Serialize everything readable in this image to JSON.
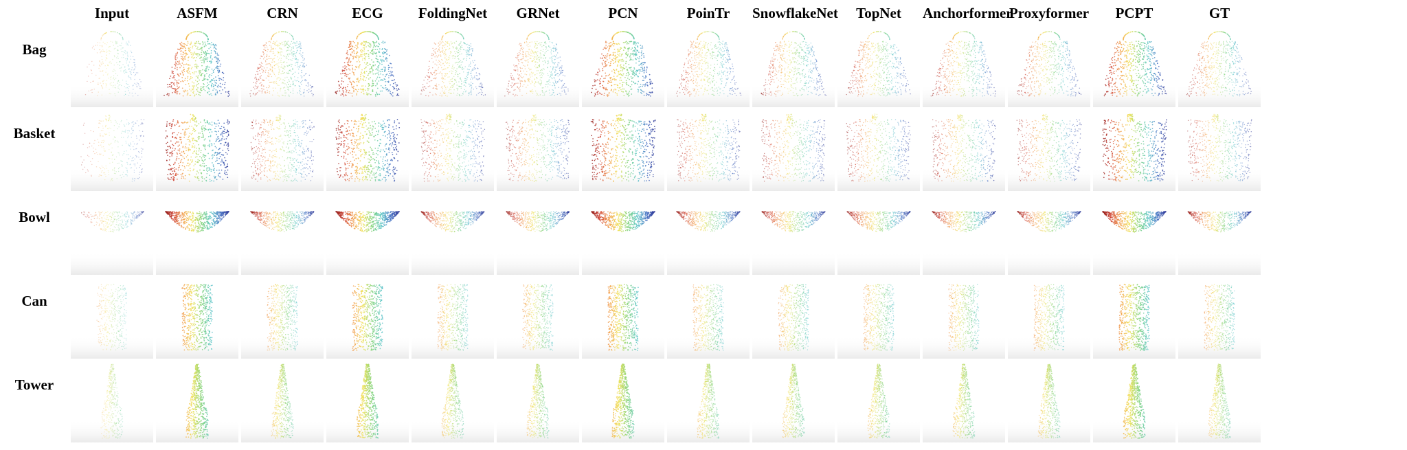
{
  "figure": {
    "columns": [
      "Input",
      "ASFM",
      "CRN",
      "ECG",
      "FoldingNet",
      "GRNet",
      "PCN",
      "PoinTr",
      "SnowflakeNet",
      "TopNet",
      "Anchorformer",
      "Proxyformer",
      "PCPT",
      "GT"
    ],
    "rows": [
      "Bag",
      "Basket",
      "Bowl",
      "Can",
      "Tower"
    ],
    "row_shapes": [
      "bag",
      "basket",
      "bowl",
      "can",
      "tower"
    ],
    "colormap": [
      "#8b1a1a",
      "#d1493a",
      "#f29e4c",
      "#f1e35b",
      "#7fd27a",
      "#5cc6c8",
      "#4a73c4",
      "#2b2f8f"
    ]
  }
}
